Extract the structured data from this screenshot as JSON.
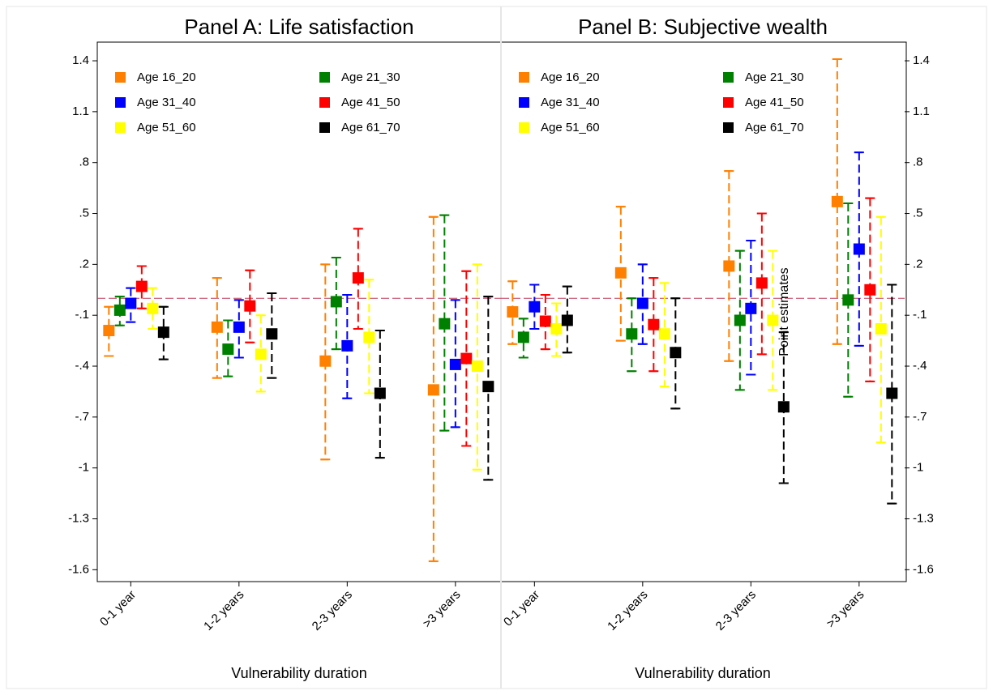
{
  "chart_data": [
    {
      "type": "errorbar",
      "title": "Panel A: Life satisfaction",
      "x_label": "Vulnerability duration",
      "y_axis_side": "left",
      "categories": [
        "0-1 year",
        "1-2 years",
        "2-3 years",
        ">3 years"
      ],
      "ylim": [
        -1.67,
        1.51
      ],
      "yticks": [
        1.4,
        1.1,
        {
          "value": 0.8,
          "label": ".8"
        },
        {
          "value": 0.5,
          "label": ".5"
        },
        {
          "value": 0.2,
          "label": ".2"
        },
        {
          "value": -0.1,
          "label": "-.1"
        },
        {
          "value": -0.4,
          "label": "-.4"
        },
        {
          "value": -0.7,
          "label": "-.7"
        },
        -1,
        -1.3,
        -1.6
      ],
      "reference_line": {
        "value": 0,
        "color": "#c03a5a"
      },
      "series": [
        {
          "name": "Age 16_20",
          "color": "#ff8000",
          "values": [
            -0.19,
            -0.17,
            -0.37,
            -0.54
          ],
          "lower": [
            -0.34,
            -0.47,
            -0.95,
            -1.55
          ],
          "upper": [
            -0.05,
            0.12,
            0.2,
            0.48
          ]
        },
        {
          "name": "Age 21_30",
          "color": "#008000",
          "values": [
            -0.07,
            -0.3,
            -0.02,
            -0.15
          ],
          "lower": [
            -0.16,
            -0.46,
            -0.3,
            -0.78
          ],
          "upper": [
            0.01,
            -0.13,
            0.24,
            0.49
          ]
        },
        {
          "name": "Age 31_40",
          "color": "#0000ff",
          "values": [
            -0.03,
            -0.17,
            -0.28,
            -0.39
          ],
          "lower": [
            -0.14,
            -0.35,
            -0.59,
            -0.76
          ],
          "upper": [
            0.06,
            -0.01,
            0.02,
            -0.01
          ]
        },
        {
          "name": "Age 41_50",
          "color": "#ff0000",
          "values": [
            0.07,
            -0.045,
            0.12,
            -0.355
          ],
          "lower": [
            -0.06,
            -0.26,
            -0.18,
            -0.87
          ],
          "upper": [
            0.19,
            0.165,
            0.41,
            0.16
          ]
        },
        {
          "name": "Age 51_60",
          "color": "#ffff00",
          "values": [
            -0.06,
            -0.33,
            -0.23,
            -0.4
          ],
          "lower": [
            -0.18,
            -0.55,
            -0.56,
            -1.01
          ],
          "upper": [
            0.06,
            -0.1,
            0.11,
            0.2
          ]
        },
        {
          "name": "Age 61_70",
          "color": "#000000",
          "values": [
            -0.2,
            -0.21,
            -0.56,
            -0.52
          ],
          "lower": [
            -0.36,
            -0.47,
            -0.94,
            -1.07
          ],
          "upper": [
            -0.05,
            0.03,
            -0.19,
            0.01
          ]
        }
      ]
    },
    {
      "type": "errorbar",
      "title": "Panel B: Subjective wealth",
      "x_label": "Vulnerability duration",
      "y_axis_side": "right",
      "annotation": "Point estimates",
      "categories": [
        "0-1 year",
        "1-2 years",
        "2-3 years",
        ">3 years"
      ],
      "ylim": [
        -1.67,
        1.51
      ],
      "yticks": [
        1.4,
        1.1,
        {
          "value": 0.8,
          "label": ".8"
        },
        {
          "value": 0.5,
          "label": ".5"
        },
        {
          "value": 0.2,
          "label": ".2"
        },
        {
          "value": -0.1,
          "label": "-.1"
        },
        {
          "value": -0.4,
          "label": "-.4"
        },
        {
          "value": -0.7,
          "label": "-.7"
        },
        -1,
        -1.3,
        -1.6
      ],
      "reference_line": {
        "value": 0,
        "color": "#c03a5a"
      },
      "series": [
        {
          "name": "Age 16_20",
          "color": "#ff8000",
          "values": [
            -0.08,
            0.15,
            0.19,
            0.57
          ],
          "lower": [
            -0.27,
            -0.25,
            -0.37,
            -0.27
          ],
          "upper": [
            0.1,
            0.54,
            0.75,
            1.41
          ]
        },
        {
          "name": "Age 21_30",
          "color": "#008000",
          "values": [
            -0.23,
            -0.21,
            -0.13,
            -0.01
          ],
          "lower": [
            -0.35,
            -0.43,
            -0.54,
            -0.58
          ],
          "upper": [
            -0.12,
            0.0,
            0.28,
            0.56
          ]
        },
        {
          "name": "Age 31_40",
          "color": "#0000ff",
          "values": [
            -0.05,
            -0.03,
            -0.06,
            0.29
          ],
          "lower": [
            -0.18,
            -0.27,
            -0.45,
            -0.28
          ],
          "upper": [
            0.08,
            0.2,
            0.34,
            0.86
          ]
        },
        {
          "name": "Age 41_50",
          "color": "#ff0000",
          "values": [
            -0.135,
            -0.155,
            0.09,
            0.05
          ],
          "lower": [
            -0.3,
            -0.43,
            -0.33,
            -0.49
          ],
          "upper": [
            0.02,
            0.12,
            0.5,
            0.59
          ]
        },
        {
          "name": "Age 51_60",
          "color": "#ffff00",
          "values": [
            -0.18,
            -0.21,
            -0.13,
            -0.18
          ],
          "lower": [
            -0.34,
            -0.52,
            -0.54,
            -0.85
          ],
          "upper": [
            -0.03,
            0.09,
            0.28,
            0.48
          ]
        },
        {
          "name": "Age 61_70",
          "color": "#000000",
          "values": [
            -0.13,
            -0.32,
            -0.64,
            -0.56
          ],
          "lower": [
            -0.32,
            -0.65,
            -1.09,
            -1.21
          ],
          "upper": [
            0.07,
            0.0,
            -0.2,
            0.08
          ]
        }
      ]
    }
  ]
}
